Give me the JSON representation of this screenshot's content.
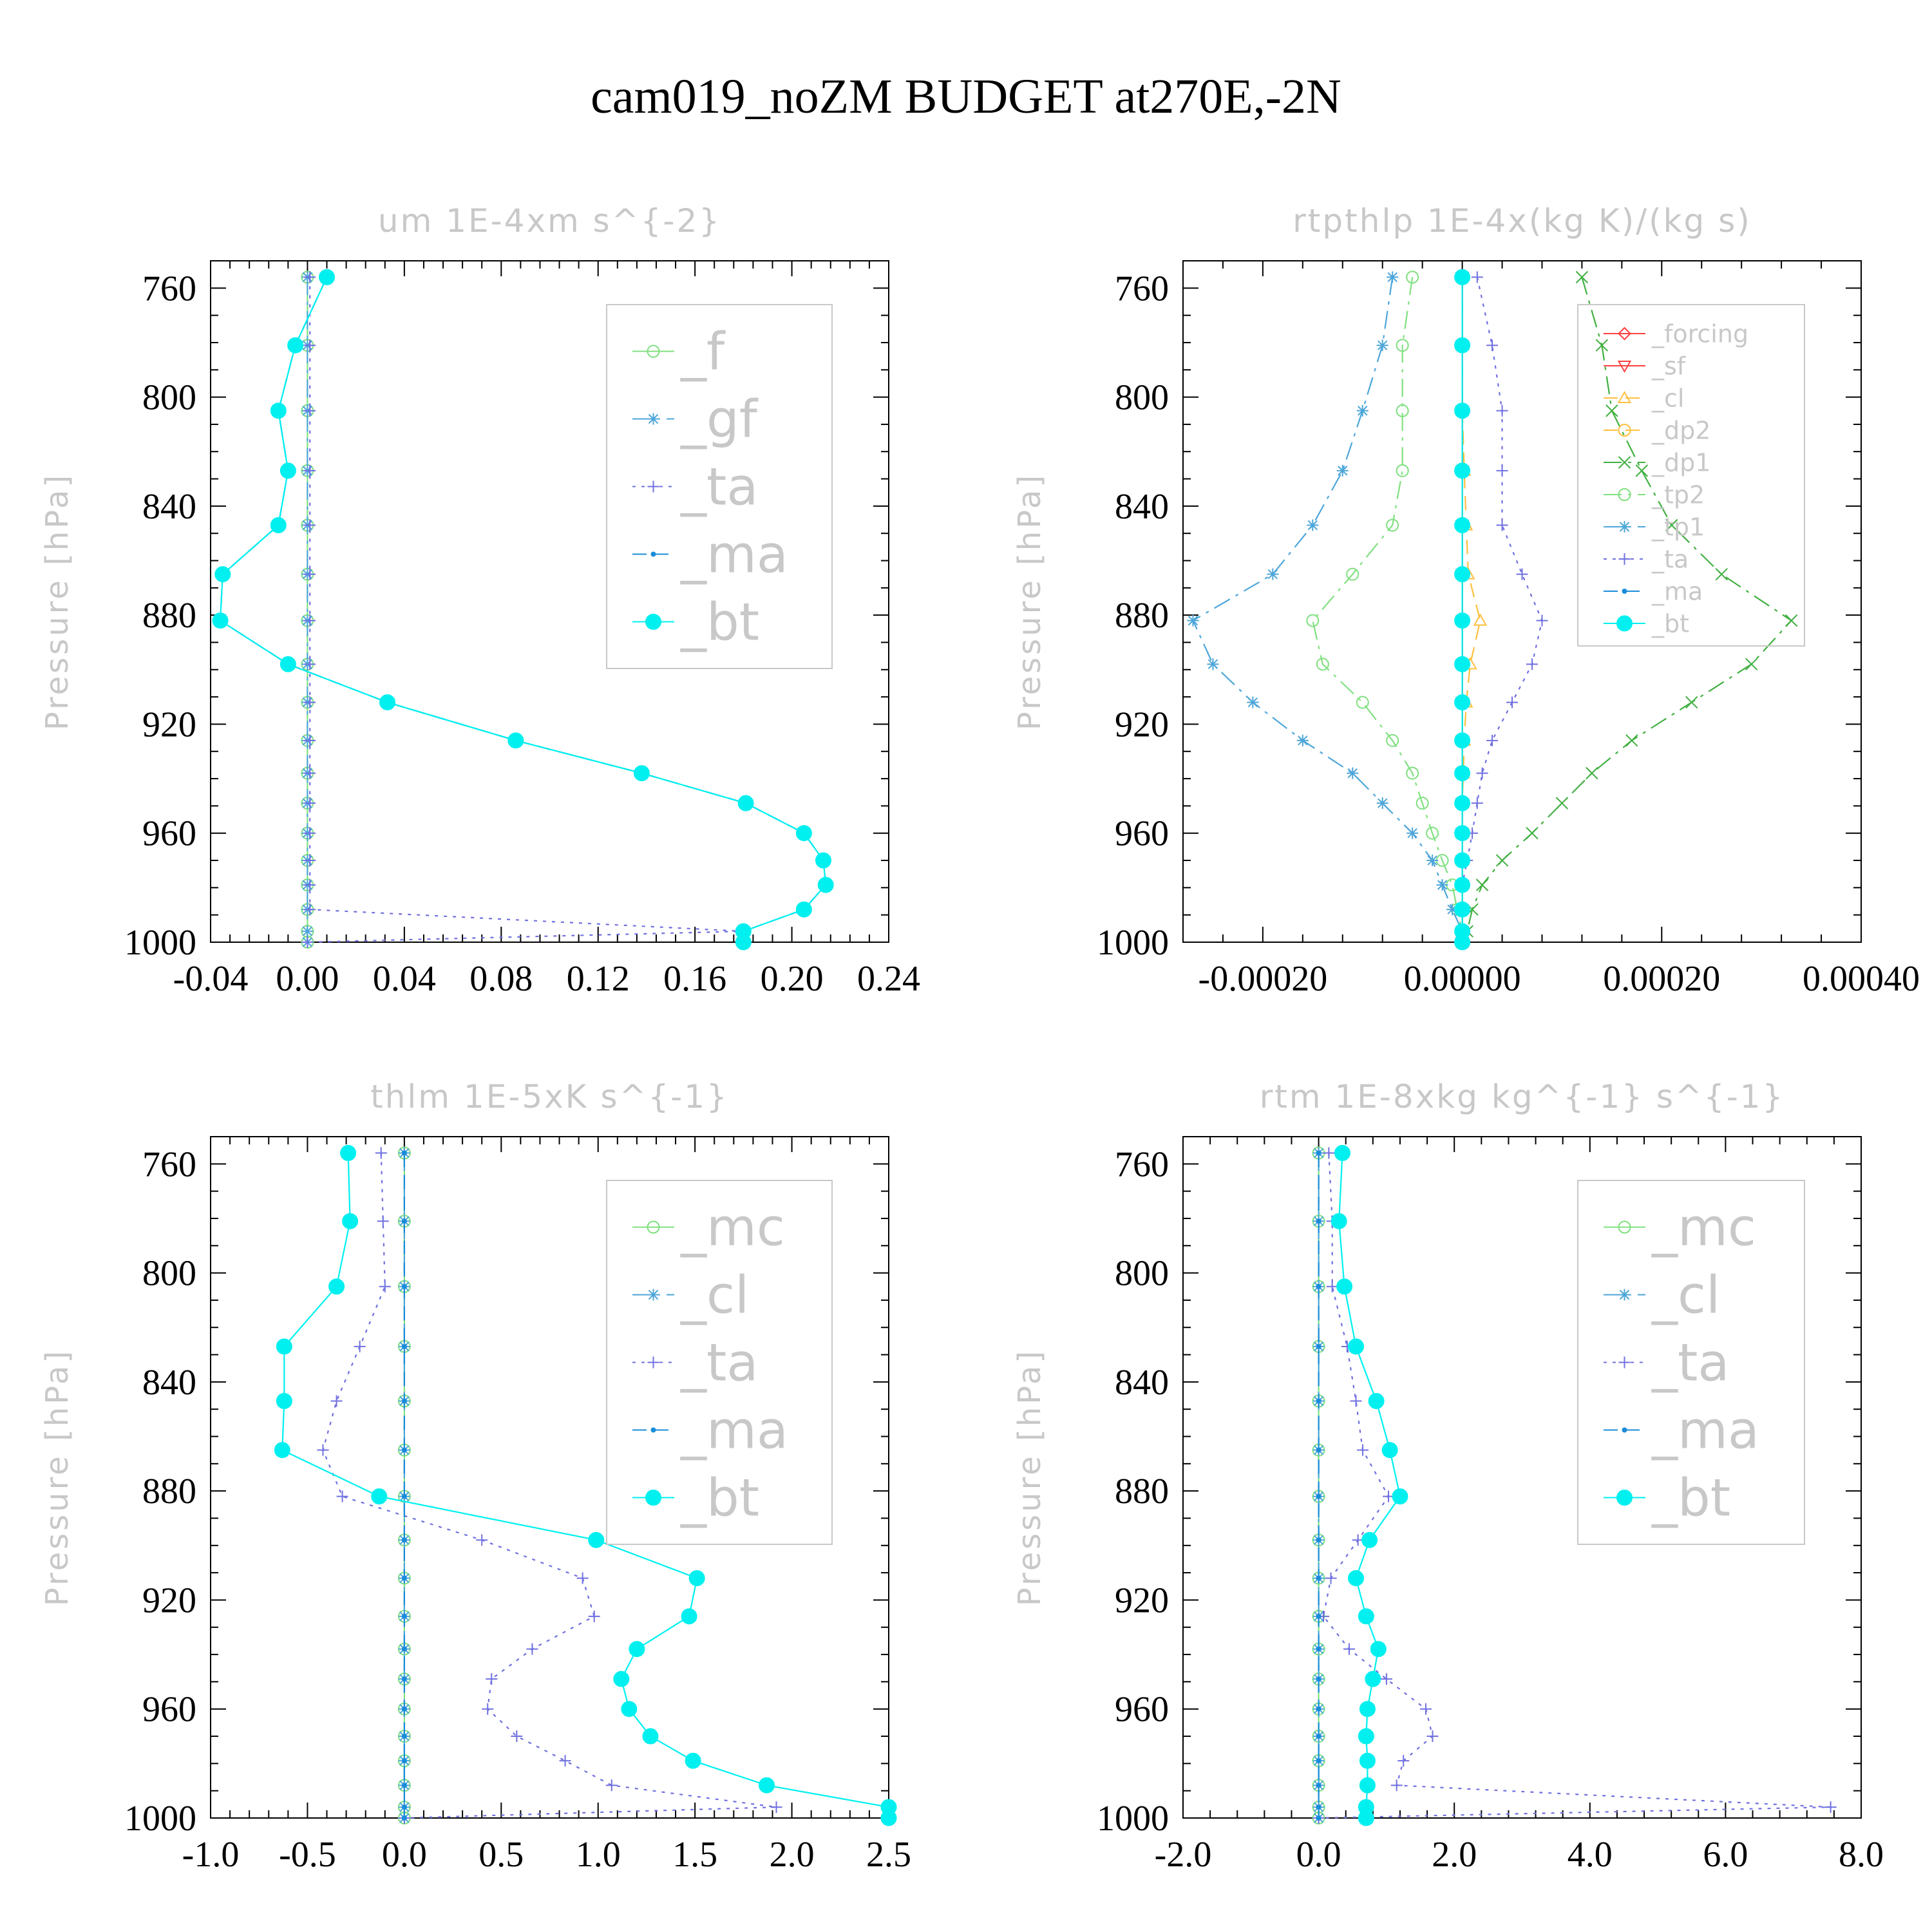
{
  "figure_title": "cam019_noZM  BUDGET at270E,-2N",
  "chart_data": [
    {
      "type": "line",
      "title": "um   1E-4xm s^{-2}",
      "ylabel": "Pressure [hPa]",
      "xlabel": "",
      "xlim": [
        -0.04,
        0.24
      ],
      "ylim": [
        1000,
        750
      ],
      "yticks": [
        760,
        800,
        840,
        880,
        920,
        960,
        1000
      ],
      "xticks": [
        -0.04,
        0.0,
        0.04,
        0.08,
        0.12,
        0.16,
        0.2,
        0.24
      ],
      "xtick_labels": [
        "-0.04",
        "0.00",
        "0.04",
        "0.08",
        "0.12",
        "0.16",
        "0.20",
        "0.24"
      ],
      "grid": false,
      "legend": "top-right",
      "y": [
        756,
        781,
        805,
        827,
        847,
        865,
        882,
        898,
        912,
        926,
        938,
        949,
        960,
        970,
        979,
        988,
        996,
        1000
      ],
      "series": [
        {
          "name": "_f",
          "color": "#80e080",
          "marker": "circle",
          "dash": "none",
          "values": [
            0,
            0,
            0,
            0,
            0,
            0,
            0,
            0,
            0,
            0,
            0,
            0,
            0,
            0,
            0,
            0,
            0,
            0
          ]
        },
        {
          "name": "_gf",
          "color": "#4da6d9",
          "marker": "star",
          "dash": "dashdot",
          "values": [
            0,
            0,
            0,
            0,
            0,
            0,
            0,
            0,
            0,
            0,
            0,
            0,
            0,
            0,
            0,
            0,
            0,
            0
          ]
        },
        {
          "name": "_ta",
          "color": "#7070e0",
          "marker": "plus",
          "dash": "dot",
          "values": [
            0.001,
            0.001,
            0.001,
            0.001,
            0.001,
            0.001,
            0.001,
            0.001,
            0.001,
            0.001,
            0.001,
            0.001,
            0.001,
            0.001,
            0.001,
            0.001,
            0.18,
            0.0
          ]
        },
        {
          "name": "_ma",
          "color": "#1a8cd9",
          "marker": "dot",
          "dash": "dash",
          "values": [
            0.008,
            -0.005,
            -0.012,
            -0.008,
            -0.012,
            -0.035,
            -0.036,
            -0.008,
            0.033,
            0.086,
            0.138,
            0.181,
            0.205,
            0.213,
            0.214,
            0.205,
            0.18,
            0.18
          ]
        },
        {
          "name": "_bt",
          "color": "#00f0f0",
          "marker": "filled-circle",
          "dash": "none",
          "values": [
            0.008,
            -0.005,
            -0.012,
            -0.008,
            -0.012,
            -0.035,
            -0.036,
            -0.008,
            0.033,
            0.086,
            0.138,
            0.181,
            0.205,
            0.213,
            0.214,
            0.205,
            0.18,
            0.18
          ]
        }
      ]
    },
    {
      "type": "line",
      "title": "rtpthlp   1E-4x(kg K)/(kg s)",
      "ylabel": "Pressure [hPa]",
      "xlabel": "",
      "xlim": [
        -0.00028,
        0.0004
      ],
      "ylim": [
        1000,
        750
      ],
      "yticks": [
        760,
        800,
        840,
        880,
        920,
        960,
        1000
      ],
      "xticks": [
        -0.0002,
        0.0,
        0.0002,
        0.0004
      ],
      "xtick_labels": [
        "-0.00020",
        "0.00000",
        "0.00020",
        "0.00040"
      ],
      "grid": false,
      "legend": "top-right",
      "y": [
        756,
        781,
        805,
        827,
        847,
        865,
        882,
        898,
        912,
        926,
        938,
        949,
        960,
        970,
        979,
        988,
        996,
        1000
      ],
      "series": [
        {
          "name": "_forcing",
          "color": "#ff4040",
          "marker": "diamond",
          "dash": "none",
          "values": [
            0,
            0,
            0,
            0,
            0,
            0,
            0,
            0,
            0,
            0,
            0,
            0,
            0,
            0,
            0,
            0,
            0,
            0
          ]
        },
        {
          "name": "_sf",
          "color": "#ff4040",
          "marker": "triangle-down",
          "dash": "none",
          "values": [
            0,
            0,
            0,
            0,
            0,
            0,
            0,
            0,
            0,
            0,
            0,
            0,
            0,
            0,
            0,
            0,
            0,
            0
          ]
        },
        {
          "name": "_cl",
          "color": "#ffc040",
          "marker": "triangle-up",
          "dash": "dash",
          "values": [
            0,
            0,
            0,
            2e-06,
            4e-06,
            6e-06,
            1.8e-05,
            8e-06,
            4e-06,
            2e-06,
            1e-06,
            0,
            0,
            0,
            0,
            0,
            0,
            0
          ]
        },
        {
          "name": "_dp2",
          "color": "#ffc040",
          "marker": "circle",
          "dash": "dash",
          "values": [
            0,
            0,
            0,
            0,
            0,
            0,
            0,
            0,
            0,
            0,
            0,
            0,
            0,
            0,
            0,
            0,
            0,
            0
          ]
        },
        {
          "name": "_dp1",
          "color": "#40b040",
          "marker": "x",
          "dash": "dashdot",
          "values": [
            0.00012,
            0.00014,
            0.00015,
            0.00018,
            0.00021,
            0.00026,
            0.00033,
            0.00029,
            0.00023,
            0.00017,
            0.00013,
            0.0001,
            7e-05,
            4e-05,
            2e-05,
            1e-05,
            5e-06,
            0
          ]
        },
        {
          "name": "_tp2",
          "color": "#80e080",
          "marker": "circle",
          "dash": "dashdot",
          "values": [
            -5e-05,
            -6e-05,
            -6e-05,
            -6e-05,
            -7e-05,
            -0.00011,
            -0.00015,
            -0.00014,
            -0.0001,
            -7e-05,
            -5e-05,
            -4e-05,
            -3e-05,
            -2e-05,
            -1e-05,
            -5e-06,
            0,
            0
          ]
        },
        {
          "name": "_tp1",
          "color": "#4da6d9",
          "marker": "star",
          "dash": "dashdot",
          "values": [
            -7e-05,
            -8e-05,
            -0.0001,
            -0.00012,
            -0.00015,
            -0.00019,
            -0.00027,
            -0.00025,
            -0.00021,
            -0.00016,
            -0.00011,
            -8e-05,
            -5e-05,
            -3e-05,
            -2e-05,
            -1e-05,
            0,
            0
          ]
        },
        {
          "name": "_ta",
          "color": "#7070e0",
          "marker": "plus",
          "dash": "dot",
          "values": [
            1.5e-05,
            3e-05,
            4e-05,
            4e-05,
            4e-05,
            6e-05,
            8e-05,
            7e-05,
            5e-05,
            3e-05,
            2e-05,
            1.5e-05,
            1e-05,
            5e-06,
            0,
            0,
            0,
            0
          ]
        },
        {
          "name": "_ma",
          "color": "#1a8cd9",
          "marker": "dot",
          "dash": "dash",
          "values": [
            0,
            0,
            0,
            0,
            0,
            0,
            0,
            0,
            0,
            0,
            0,
            0,
            0,
            0,
            0,
            0,
            0,
            0
          ]
        },
        {
          "name": "_bt",
          "color": "#00f0f0",
          "marker": "filled-circle",
          "dash": "none",
          "values": [
            0,
            0,
            0,
            0,
            0,
            0,
            0,
            0,
            0,
            0,
            0,
            0,
            0,
            0,
            0,
            0,
            0,
            0
          ]
        }
      ]
    },
    {
      "type": "line",
      "title": "thlm   1E-5xK s^{-1}",
      "ylabel": "Pressure [hPa]",
      "xlabel": "",
      "xlim": [
        -1.0,
        2.5
      ],
      "ylim": [
        1000,
        750
      ],
      "yticks": [
        760,
        800,
        840,
        880,
        920,
        960,
        1000
      ],
      "xticks": [
        -1.0,
        -0.5,
        0.0,
        0.5,
        1.0,
        1.5,
        2.0,
        2.5
      ],
      "xtick_labels": [
        "-1.0",
        "-0.5",
        "0.0",
        "0.5",
        "1.0",
        "1.5",
        "2.0",
        "2.5"
      ],
      "grid": false,
      "legend": "top-right",
      "y": [
        756,
        781,
        805,
        827,
        847,
        865,
        882,
        898,
        912,
        926,
        938,
        949,
        960,
        970,
        979,
        988,
        996,
        1000
      ],
      "series": [
        {
          "name": "_mc",
          "color": "#80e080",
          "marker": "circle",
          "dash": "none",
          "values": [
            0,
            0,
            0,
            0,
            0,
            0,
            0,
            0,
            0,
            0,
            0,
            0,
            0,
            0,
            0,
            0,
            0,
            0
          ]
        },
        {
          "name": "_cl",
          "color": "#4da6d9",
          "marker": "star",
          "dash": "dashdot",
          "values": [
            0,
            0,
            0,
            0,
            0,
            0,
            0,
            0,
            0,
            0,
            0,
            0,
            0,
            0,
            0,
            0,
            0,
            0
          ]
        },
        {
          "name": "_ta",
          "color": "#7070e0",
          "marker": "plus",
          "dash": "dot",
          "values": [
            -0.12,
            -0.11,
            -0.1,
            -0.23,
            -0.35,
            -0.42,
            -0.32,
            0.4,
            0.92,
            0.98,
            0.66,
            0.45,
            0.43,
            0.58,
            0.83,
            1.07,
            1.92,
            0.0
          ]
        },
        {
          "name": "_ma",
          "color": "#1a8cd9",
          "marker": "dot",
          "dash": "dash",
          "values": [
            0,
            0,
            0,
            0,
            0,
            0,
            0,
            0,
            0,
            0,
            0,
            0,
            0,
            0,
            0,
            0,
            0,
            0
          ]
        },
        {
          "name": "_bt",
          "color": "#00f0f0",
          "marker": "filled-circle",
          "dash": "none",
          "values": [
            -0.29,
            -0.28,
            -0.35,
            -0.62,
            -0.62,
            -0.63,
            -0.13,
            0.99,
            1.51,
            1.47,
            1.2,
            1.12,
            1.16,
            1.27,
            1.49,
            1.87,
            2.5,
            2.5
          ]
        }
      ]
    },
    {
      "type": "line",
      "title": "rtm   1E-8xkg kg^{-1} s^{-1}",
      "ylabel": "Pressure [hPa]",
      "xlabel": "",
      "xlim": [
        -2.0,
        8.0
      ],
      "ylim": [
        1000,
        750
      ],
      "yticks": [
        760,
        800,
        840,
        880,
        920,
        960,
        1000
      ],
      "xticks": [
        -2.0,
        0.0,
        2.0,
        4.0,
        6.0,
        8.0
      ],
      "xtick_labels": [
        "-2.0",
        "0.0",
        "2.0",
        "4.0",
        "6.0",
        "8.0"
      ],
      "grid": false,
      "legend": "top-right",
      "y": [
        756,
        781,
        805,
        827,
        847,
        865,
        882,
        898,
        912,
        926,
        938,
        949,
        960,
        970,
        979,
        988,
        996,
        1000
      ],
      "series": [
        {
          "name": "_mc",
          "color": "#80e080",
          "marker": "circle",
          "dash": "none",
          "values": [
            0,
            0,
            0,
            0,
            0,
            0,
            0,
            0,
            0,
            0,
            0,
            0,
            0,
            0,
            0,
            0,
            0,
            0
          ]
        },
        {
          "name": "_cl",
          "color": "#4da6d9",
          "marker": "star",
          "dash": "dashdot",
          "values": [
            0,
            0,
            0,
            0,
            0,
            0,
            0,
            0,
            0,
            0,
            0,
            0,
            0,
            0,
            0,
            0,
            0,
            0
          ]
        },
        {
          "name": "_ta",
          "color": "#7070e0",
          "marker": "plus",
          "dash": "dot",
          "values": [
            0.15,
            0.2,
            0.2,
            0.42,
            0.55,
            0.65,
            1.03,
            0.58,
            0.18,
            0.07,
            0.45,
            1.0,
            1.58,
            1.68,
            1.25,
            1.15,
            7.55,
            0.0
          ]
        },
        {
          "name": "_ma",
          "color": "#1a8cd9",
          "marker": "dot",
          "dash": "dash",
          "values": [
            0,
            0,
            0,
            0,
            0,
            0,
            0,
            0,
            0,
            0,
            0,
            0,
            0,
            0,
            0,
            0,
            0,
            0
          ]
        },
        {
          "name": "_bt",
          "color": "#00f0f0",
          "marker": "filled-circle",
          "dash": "none",
          "values": [
            0.35,
            0.3,
            0.38,
            0.55,
            0.85,
            1.05,
            1.2,
            0.75,
            0.55,
            0.7,
            0.88,
            0.8,
            0.72,
            0.7,
            0.72,
            0.72,
            0.7,
            0.7
          ]
        }
      ]
    }
  ]
}
